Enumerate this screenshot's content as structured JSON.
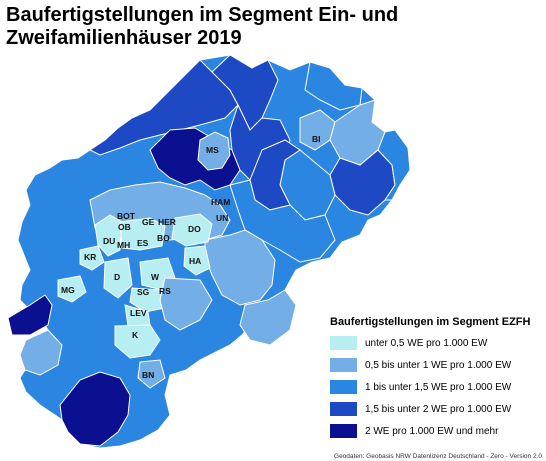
{
  "title": "Baufertigstellungen im Segment Ein- und Zweifamilienhäuser 2019",
  "legend": {
    "title": "Baufertigstellungen im Segment EZFH",
    "items": [
      {
        "label": "unter 0,5 WE pro 1.000 EW",
        "color": "#b7eef2"
      },
      {
        "label": "0,5 bis unter 1 WE pro 1.000 EW",
        "color": "#73aee6"
      },
      {
        "label": "1 bis unter 1,5 WE pro 1.000 EW",
        "color": "#2a86e0"
      },
      {
        "label": "1,5 bis unter 2 WE pro 1.000 EW",
        "color": "#1d49c4"
      },
      {
        "label": "2 WE pro 1.000 EW und mehr",
        "color": "#0a108f"
      }
    ]
  },
  "city_labels": {
    "MS": "MS",
    "BI": "BI",
    "HAM": "HAM",
    "UN": "UN",
    "BOT": "BOT",
    "GE": "GE",
    "HER": "HER",
    "OB": "OB",
    "DO": "DO",
    "DU": "DU",
    "MH": "MH",
    "ES": "ES",
    "BO": "BO",
    "KR": "KR",
    "HA": "HA",
    "D": "D",
    "W": "W",
    "MG": "MG",
    "SG": "SG",
    "RS": "RS",
    "LEV": "LEV",
    "K": "K",
    "BN": "BN"
  },
  "source": "Geodaten: Geobasis NRW Datenlizenz Deutschland - Zero - Version 2.0"
}
